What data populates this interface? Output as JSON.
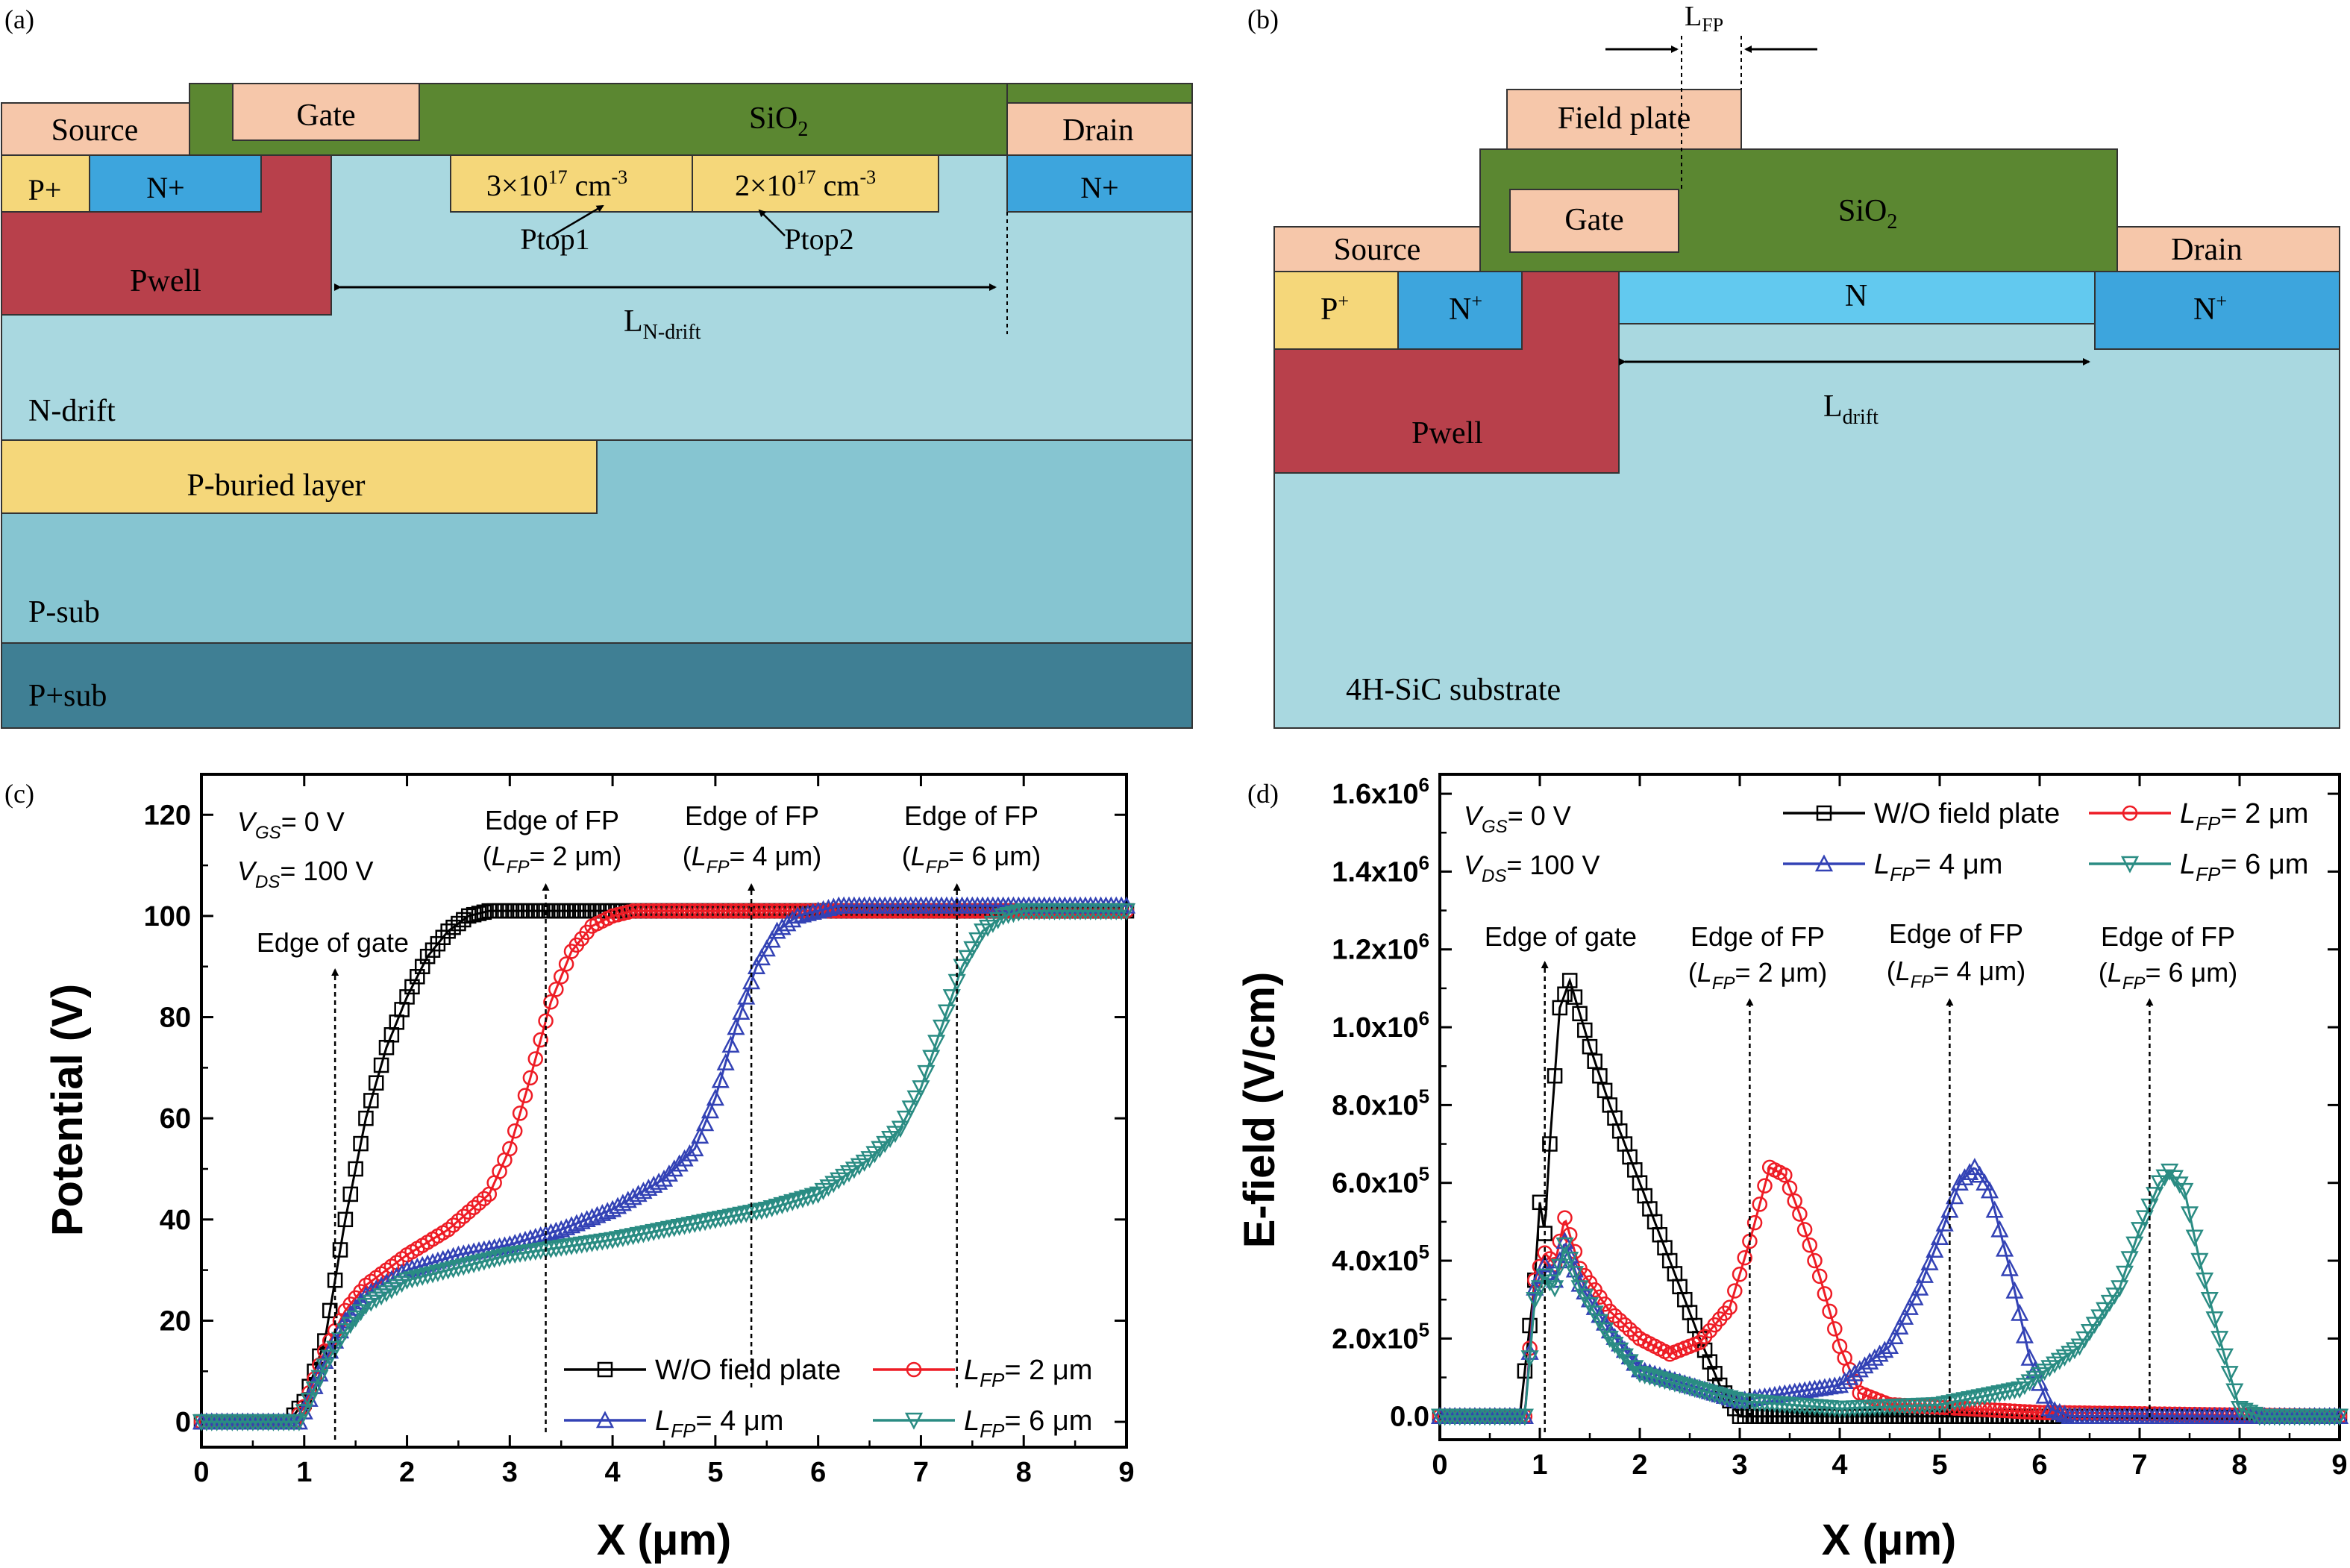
{
  "panels": {
    "a": {
      "tag": "(a)",
      "labels": {
        "source": "Source",
        "gate": "Gate",
        "sio2_main": "SiO",
        "sio2_sub": "2",
        "drain": "Drain",
        "pplus": "P+",
        "nplus_left": "N+",
        "nplus_right": "N+",
        "ptop1_doping_base": "3×10",
        "ptop1_doping_exp": "17",
        "ptop1_doping_unit": " cm",
        "ptop1_doping_unit_exp": "-3",
        "ptop2_doping_base": "2×10",
        "ptop2_doping_exp": "17",
        "ptop2_doping_unit": " cm",
        "ptop2_doping_unit_exp": "-3",
        "ptop1": "Ptop1",
        "ptop2": "Ptop2",
        "pwell": "Pwell",
        "ldrift_main": "L",
        "ldrift_sub": "N-drift",
        "ndrift": "N-drift",
        "pburied": "P-buried layer",
        "psub": "P-sub",
        "ppsub": "P+sub"
      }
    },
    "b": {
      "tag": "(b)",
      "labels": {
        "lfp_main": "L",
        "lfp_sub": "FP",
        "field_plate": "Field plate",
        "gate": "Gate",
        "sio2_main": "SiO",
        "sio2_sub": "2",
        "source": "Source",
        "drain": "Drain",
        "pplus_main": "P",
        "pplus_sup": "+",
        "nplus_left_main": "N",
        "nplus_left_sup": "+",
        "n_region": "N",
        "nplus_right_main": "N",
        "nplus_right_sup": "+",
        "ldrift_main": "L",
        "ldrift_sub": "drift",
        "pwell": "Pwell",
        "substrate": "4H-SiC substrate"
      }
    },
    "c": {
      "tag": "(c)",
      "conditions": {
        "vgs": "= 0 V",
        "vds": "= 100 V"
      },
      "annotations": {
        "edge_gate": "Edge of gate",
        "edge_fp": "Edge of FP",
        "lfp2": "= 2 μm",
        "lfp4": "= 4 μm",
        "lfp6": "= 6 μm"
      }
    },
    "d": {
      "tag": "(d)",
      "conditions": {
        "vgs": "= 0 V",
        "vds": "= 100 V"
      },
      "annotations": {
        "edge_gate": "Edge of gate",
        "edge_fp": "Edge of FP",
        "lfp2": "= 2 μm",
        "lfp4": "= 4 μm",
        "lfp6": "= 6 μm"
      }
    }
  },
  "colors": {
    "sio2": "#5b8731",
    "metal": "#f6c7aa",
    "nplus": "#3da5dd",
    "nregion": "#62c9ef",
    "pplus": "#f5d77a",
    "pwell": "#b8404b",
    "ndrift": "#a9d8e0",
    "psub": "#86c5d1",
    "ppsub": "#3f7f94",
    "series_wo": "#000000",
    "series_fp2": "#ee1c25",
    "series_fp4": "#3342b5",
    "series_fp6": "#2a8c83"
  },
  "chart_data": [
    {
      "panel": "c",
      "type": "line",
      "xlabel": "X (μm)",
      "ylabel": "Potential (V)",
      "xlim": [
        0,
        9
      ],
      "ylim": [
        -5,
        128
      ],
      "xticks": [
        "0",
        "1",
        "2",
        "3",
        "4",
        "5",
        "6",
        "7",
        "8",
        "9"
      ],
      "yticks": [
        "0",
        "20",
        "40",
        "60",
        "80",
        "100",
        "120"
      ],
      "legend": "bottom-right",
      "series": [
        {
          "name": "W/O field plate",
          "marker": "square",
          "x": [
            0,
            0.85,
            1.0,
            1.2,
            1.4,
            1.6,
            1.8,
            2.0,
            2.2,
            2.4,
            2.6,
            2.8,
            3.0,
            3.2,
            4.0,
            5.0,
            6.0,
            9.0
          ],
          "y": [
            0,
            0,
            4,
            16,
            40,
            60,
            74,
            84,
            92,
            97,
            100,
            101,
            101,
            101,
            101,
            101,
            101,
            101
          ]
        },
        {
          "name": "L_FP = 2 μm",
          "marker": "circle",
          "x": [
            0,
            0.9,
            1.0,
            1.2,
            1.4,
            1.6,
            2.0,
            2.4,
            2.8,
            3.0,
            3.2,
            3.4,
            3.6,
            3.8,
            4.0,
            4.2,
            5.0,
            9.0
          ],
          "y": [
            0,
            0,
            3,
            14,
            22,
            27,
            33,
            38,
            45,
            54,
            68,
            83,
            93,
            98,
            100,
            101,
            101,
            101
          ]
        },
        {
          "name": "L_FP = 4 μm",
          "marker": "triangle-up",
          "x": [
            0,
            0.95,
            1.0,
            1.2,
            1.4,
            1.6,
            2.0,
            2.5,
            3.0,
            3.5,
            4.0,
            4.5,
            4.8,
            5.0,
            5.2,
            5.4,
            5.6,
            5.8,
            6.0,
            6.2,
            9.0
          ],
          "y": [
            0,
            0,
            2,
            12,
            20,
            25,
            30,
            33,
            35,
            38,
            42,
            48,
            54,
            64,
            78,
            90,
            97,
            100,
            101,
            102,
            102
          ]
        },
        {
          "name": "L_FP = 6 μm",
          "marker": "triangle-down",
          "x": [
            0,
            0.95,
            1.0,
            1.2,
            1.4,
            1.6,
            2.0,
            3.0,
            4.0,
            5.0,
            5.5,
            6.0,
            6.5,
            6.8,
            7.0,
            7.2,
            7.4,
            7.6,
            7.8,
            8.0,
            8.2,
            9.0
          ],
          "y": [
            0,
            0,
            2,
            11,
            18,
            23,
            28,
            33,
            36,
            40,
            42,
            45,
            52,
            58,
            66,
            78,
            90,
            97,
            100,
            101,
            101,
            101
          ]
        }
      ]
    },
    {
      "panel": "d",
      "type": "line",
      "xlabel": "X (μm)",
      "ylabel": "E-field (V/cm)",
      "xlim": [
        0,
        9
      ],
      "ylim": [
        -60000,
        1650000
      ],
      "xticks": [
        "0",
        "1",
        "2",
        "3",
        "4",
        "5",
        "6",
        "7",
        "8",
        "9"
      ],
      "yticks": [
        "0.0",
        "2.0x10^5",
        "4.0x10^5",
        "6.0x10^5",
        "8.0x10^5",
        "1.0x10^6",
        "1.2x10^6",
        "1.4x10^6",
        "1.6x10^6"
      ],
      "legend": "top-right",
      "series": [
        {
          "name": "W/O field plate",
          "marker": "square",
          "x": [
            0,
            0.8,
            0.95,
            1.0,
            1.05,
            1.1,
            1.2,
            1.3,
            1.5,
            1.7,
            2.0,
            2.3,
            2.6,
            2.8,
            2.95,
            3.0,
            3.2,
            9.0
          ],
          "y": [
            0,
            0,
            350000,
            550000,
            470000,
            700000,
            1050000,
            1120000,
            950000,
            800000,
            600000,
            400000,
            200000,
            80000,
            20000,
            0,
            0,
            0
          ]
        },
        {
          "name": "L_FP = 2 μm",
          "marker": "circle",
          "x": [
            0,
            0.85,
            0.95,
            1.05,
            1.15,
            1.25,
            1.4,
            1.7,
            2.0,
            2.3,
            2.6,
            2.9,
            3.1,
            3.3,
            3.45,
            3.6,
            3.8,
            4.0,
            4.2,
            4.5,
            6.0,
            9.0
          ],
          "y": [
            0,
            0,
            350000,
            420000,
            390000,
            510000,
            380000,
            270000,
            200000,
            160000,
            190000,
            280000,
            450000,
            640000,
            620000,
            520000,
            360000,
            180000,
            60000,
            30000,
            10000,
            0
          ]
        },
        {
          "name": "L_FP = 4 μm",
          "marker": "triangle-up",
          "x": [
            0,
            0.85,
            0.95,
            1.05,
            1.15,
            1.25,
            1.4,
            1.7,
            2.0,
            3.0,
            4.0,
            4.5,
            4.8,
            5.0,
            5.2,
            5.35,
            5.5,
            5.7,
            5.9,
            6.1,
            6.3,
            9.0
          ],
          "y": [
            0,
            0,
            330000,
            390000,
            350000,
            450000,
            340000,
            220000,
            120000,
            40000,
            80000,
            180000,
            330000,
            460000,
            600000,
            640000,
            580000,
            380000,
            150000,
            20000,
            0,
            0
          ]
        },
        {
          "name": "L_FP = 6 μm",
          "marker": "triangle-down",
          "x": [
            0,
            0.85,
            0.95,
            1.05,
            1.15,
            1.25,
            1.4,
            1.7,
            2.0,
            3.0,
            4.0,
            5.0,
            5.8,
            6.4,
            6.8,
            7.0,
            7.2,
            7.3,
            7.45,
            7.6,
            7.8,
            8.0,
            8.2,
            9.0
          ],
          "y": [
            0,
            0,
            300000,
            360000,
            330000,
            440000,
            330000,
            200000,
            110000,
            40000,
            20000,
            30000,
            70000,
            180000,
            330000,
            480000,
            600000,
            630000,
            580000,
            400000,
            200000,
            20000,
            0,
            0
          ]
        }
      ]
    }
  ]
}
